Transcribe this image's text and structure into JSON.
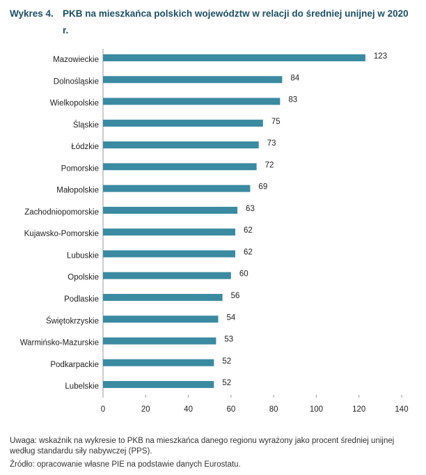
{
  "chart_data": {
    "type": "bar",
    "orientation": "horizontal",
    "figure_label": "Wykres 4.",
    "title": "PKB na mieszkańca polskich województw w relacji do średniej unijnej w 2020 r.",
    "categories": [
      "Mazowieckie",
      "Dolnośląskie",
      "Wielkopolskie",
      "Śląskie",
      "Łódzkie",
      "Pomorskie",
      "Małopolskie",
      "Zachodniopomorskie",
      "Kujawsko-Pomorskie",
      "Lubuskie",
      "Opolskie",
      "Podlaskie",
      "Świętokrzyskie",
      "Warmińsko-Mazurskie",
      "Podkarpackie",
      "Lubelskie"
    ],
    "values": [
      123,
      84,
      83,
      75,
      73,
      72,
      69,
      63,
      62,
      62,
      60,
      56,
      54,
      53,
      52,
      52
    ],
    "color": "#3a8aa1",
    "xlim": [
      0,
      140
    ],
    "xticks": [
      0,
      20,
      40,
      60,
      80,
      100,
      120,
      140
    ],
    "grid": false,
    "note": "Uwaga: wskaźnik na wykresie to PKB na mieszkańca danego regionu wyrażony jako procent średniej unijnej według standardu siły nabywczej (PPS).",
    "source": "Źródło: opracowanie własne PIE na podstawie danych Eurostatu."
  }
}
